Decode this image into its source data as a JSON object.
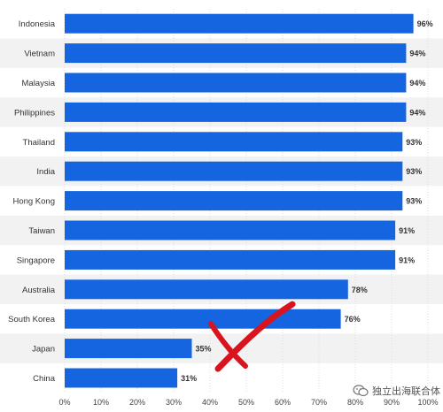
{
  "chart_data": {
    "type": "bar",
    "orientation": "horizontal",
    "categories": [
      "Indonesia",
      "Vietnam",
      "Malaysia",
      "Philippines",
      "Thailand",
      "India",
      "Hong Kong",
      "Taiwan",
      "Singapore",
      "Australia",
      "South Korea",
      "Japan",
      "China"
    ],
    "values": [
      96,
      94,
      94,
      94,
      93,
      93,
      93,
      91,
      91,
      78,
      76,
      35,
      31
    ],
    "value_suffix": "%",
    "xlim": [
      0,
      100
    ],
    "xticks": [
      "0%",
      "10%",
      "20%",
      "30%",
      "40%",
      "50%",
      "60%",
      "70%",
      "80%",
      "90%",
      "100%"
    ],
    "bar_color": "#1565e0",
    "alt_row_shading": true,
    "annotation": {
      "type": "red-cross-mark",
      "color": "#d9141e",
      "target": "Japan"
    }
  },
  "watermark": {
    "text": "独立出海联合体",
    "icon": "wechat-icon"
  }
}
